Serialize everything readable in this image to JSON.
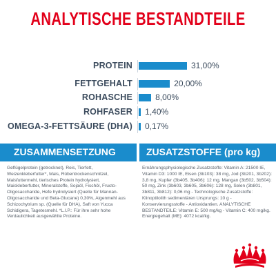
{
  "title": "ANALYTISCHE BESTANDTEILE",
  "chart_data": {
    "type": "bar",
    "categories": [
      "PROTEIN",
      "FETTGEHALT",
      "ROHASCHE",
      "ROHFASER",
      "OMEGA-3-FETTSÄURE (DHA)"
    ],
    "values": [
      31.0,
      20.0,
      8.0,
      1.4,
      0.17
    ],
    "value_labels": [
      "31,00%",
      "20,00%",
      "8,00%",
      "1,40%",
      "0,17%"
    ],
    "title": "",
    "xlabel": "",
    "ylabel": "",
    "color": "#1a8ccc",
    "orientation": "horizontal"
  },
  "sections": {
    "composition_title": "ZUSAMMENSETZUNG",
    "composition_text": "Geflügelprotein (getrocknet), Reis, Tierfett, Weizenkleberfutter*, Mais, Rübentrockenschnitzel, Maisfuttermehl, tierisches Protein hydrolysiert, Maiskleberfutter, Mineralstoffe, Sojaöl, Fischöl, Fructo-Oligosaccharide, Hefe hydrolysiert (Quelle für Mannan-Oligosaccharide und Beta-Glucane) 0,30%, Algenmehl aus Schizochytrium sp. (Quelle für DHA), Saft von Yucca Schidigera, Tagetesmehl. *L.I.P.: Für ihre sehr hohe Verdaulichkeit ausgewählte Proteine.",
    "additives_title": "ZUSATZSTOFFE (pro kg)",
    "additives_text": "Ernährungsphysiologische Zusatzstoffe: Vitamin A: 21500 IE, Vitamin D3: 1000 IE, Eisen (3b103): 38 mg, Jod (3b201, 3b202): 3,8 mg, Kupfer (3b405, 3b406): 12 mg, Mangan (3b502, 3b504): 50 mg, Zink (3b603, 3b605, 3b606): 128 mg, Selen (3b801, 3b811, 3b812): 0,06 mg - Technologische Zusatzstoffe: Klinoptilolith sedimentären Ursprungs: 10 g - Konservierungsstoffe - Antioxidantien. ANALYTISCHE BESTANDTEILE: Vitamin E: 500 mg/kg - Vitamin C: 400 mg/kg. Energiegehalt (ME): 4072 kcal/kg."
  },
  "colors": {
    "title_red": "#e2001a",
    "accent_blue": "#1a8ccc",
    "text_dark": "#3a4a5c",
    "logo_red": "#e2001a"
  },
  "logo": {
    "icon": "royal-canin-crown-icon"
  }
}
